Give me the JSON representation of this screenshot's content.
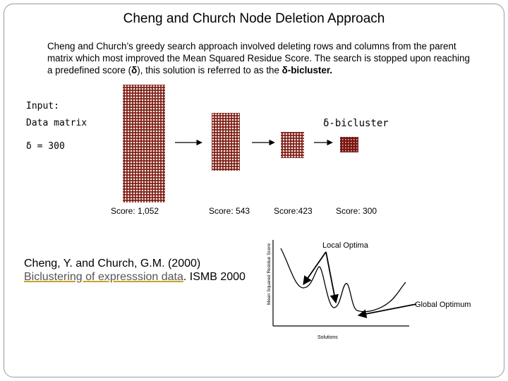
{
  "slide": {
    "title": "Cheng and Church Node Deletion Approach",
    "intro_prefix": "Cheng and Church’s greedy search approach involved deleting rows and columns from the parent matrix which most improved the Mean Squared Residue Score. The search is stopped upon reaching a predefined score (",
    "intro_delta": "δ",
    "intro_middle": "), this solution is referred to as the ",
    "intro_bold": "δ-bicluster.",
    "input_label": "Input:",
    "data_matrix_label": "Data matrix",
    "delta_value_label": "δ = 300",
    "bicluster_label": "δ-bicluster"
  },
  "scores": [
    {
      "text": "Score: 1,052"
    },
    {
      "text": "Score: 543"
    },
    {
      "text": "Score:423"
    },
    {
      "text": "Score: 300"
    }
  ],
  "reference": {
    "line1": "Cheng, Y. and Church, G.M. (2000)",
    "link_text": "Biclustering of expresssion data",
    "rest": ". ISMB 2000"
  },
  "plot": {
    "y_axis_label": "Mean Squared Residue Score",
    "x_axis_label": "Solutions",
    "local_label": "Local Optima",
    "global_label": "Global Optimum"
  },
  "colors": {
    "matrix_dark": "#7a1414",
    "matrix_light": "#f2eedc",
    "arrow": "#000000"
  }
}
